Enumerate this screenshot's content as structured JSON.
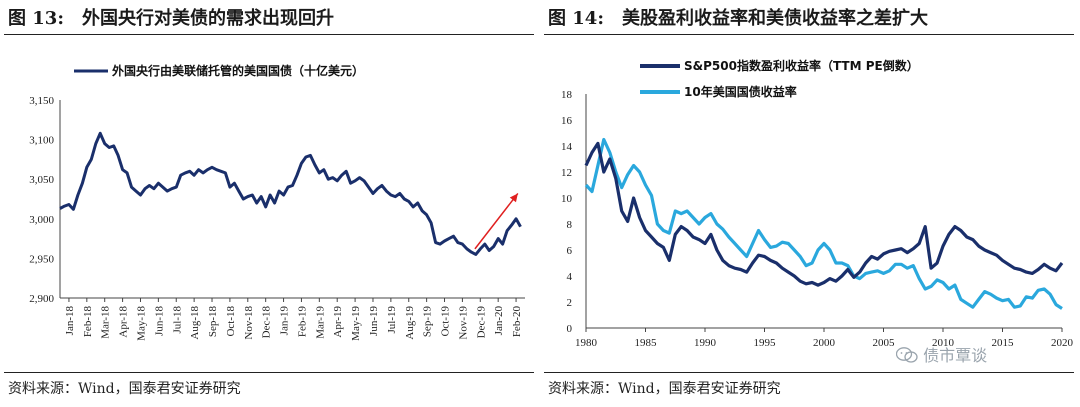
{
  "left": {
    "fig_num": "图 13:",
    "fig_title": "外国央行对美债的需求出现回升",
    "source": "资料来源：Wind，国泰君安证券研究"
  },
  "right": {
    "fig_num": "图 14:",
    "fig_title": "美股盈利收益率和美债收益率之差扩大",
    "source": "资料来源：Wind，国泰君安证券研究",
    "watermark": "债市覃谈"
  },
  "chart_data": [
    {
      "type": "line",
      "title": "",
      "ylim": [
        2900,
        3150
      ],
      "yticks": [
        2900,
        2950,
        3000,
        3050,
        3100,
        3150
      ],
      "ytick_labels": [
        "2,900",
        "2,950",
        "3,000",
        "3,050",
        "3,100",
        "3,150"
      ],
      "xtick_labels": [
        "Jan-18",
        "Feb-18",
        "Mar-18",
        "Apr-18",
        "May-18",
        "Jun-18",
        "Jul-18",
        "Aug-18",
        "Sep-18",
        "Oct-18",
        "Nov-18",
        "Dec-18",
        "Jan-19",
        "Feb-19",
        "Mar-19",
        "Apr-19",
        "May-19",
        "Jun-19",
        "Jul-19",
        "Aug-19",
        "Sep-19",
        "Oct-19",
        "Nov-19",
        "Dec-19",
        "Jan-20",
        "Feb-20"
      ],
      "x_range": [
        0,
        26
      ],
      "arrow": {
        "from": [
          23.2,
          2962
        ],
        "to": [
          25.6,
          3032
        ]
      },
      "series": [
        {
          "name": "外国央行由美联储托管的美国国债（十亿美元）",
          "color": "#1a2f6b",
          "x": [
            0,
            0.25,
            0.5,
            0.75,
            1,
            1.25,
            1.5,
            1.75,
            2,
            2.25,
            2.5,
            2.75,
            3,
            3.25,
            3.5,
            3.75,
            4,
            4.25,
            4.5,
            4.75,
            5,
            5.25,
            5.5,
            5.75,
            6,
            6.25,
            6.5,
            6.75,
            7,
            7.25,
            7.5,
            7.75,
            8,
            8.25,
            8.5,
            8.75,
            9,
            9.25,
            9.5,
            9.75,
            10,
            10.25,
            10.5,
            10.75,
            11,
            11.25,
            11.5,
            11.75,
            12,
            12.25,
            12.5,
            12.75,
            13,
            13.25,
            13.5,
            13.75,
            14,
            14.25,
            14.5,
            14.75,
            15,
            15.25,
            15.5,
            15.75,
            16,
            16.25,
            16.5,
            16.75,
            17,
            17.25,
            17.5,
            17.75,
            18,
            18.25,
            18.5,
            18.75,
            19,
            19.25,
            19.5,
            19.75,
            20,
            20.25,
            20.5,
            20.75,
            21,
            21.25,
            21.5,
            21.75,
            22,
            22.25,
            22.5,
            22.75,
            23,
            23.25,
            23.5,
            23.75,
            24,
            24.25,
            24.5,
            24.75,
            25,
            25.25,
            25.5,
            25.75
          ],
          "values": [
            3013,
            3016,
            3018,
            3012,
            3030,
            3045,
            3065,
            3075,
            3095,
            3108,
            3095,
            3090,
            3092,
            3080,
            3062,
            3058,
            3040,
            3035,
            3030,
            3038,
            3042,
            3038,
            3045,
            3040,
            3035,
            3038,
            3040,
            3055,
            3058,
            3060,
            3055,
            3062,
            3058,
            3062,
            3065,
            3062,
            3060,
            3058,
            3040,
            3045,
            3035,
            3025,
            3028,
            3030,
            3020,
            3028,
            3015,
            3030,
            3020,
            3035,
            3030,
            3040,
            3042,
            3055,
            3070,
            3078,
            3080,
            3068,
            3058,
            3062,
            3050,
            3052,
            3048,
            3055,
            3060,
            3045,
            3048,
            3052,
            3048,
            3040,
            3032,
            3038,
            3042,
            3035,
            3030,
            3028,
            3032,
            3025,
            3022,
            3015,
            3020,
            3010,
            3005,
            2995,
            2970,
            2968,
            2972,
            2975,
            2978,
            2970,
            2968,
            2962,
            2958,
            2955,
            2962,
            2968,
            2960,
            2965,
            2975,
            2968,
            2985,
            2992,
            3000,
            2990
          ]
        }
      ]
    },
    {
      "type": "line",
      "title": "",
      "ylim": [
        0,
        18
      ],
      "yticks": [
        0,
        2,
        4,
        6,
        8,
        10,
        12,
        14,
        16,
        18
      ],
      "xlim": [
        1980,
        2020
      ],
      "xticks": [
        1980,
        1985,
        1990,
        1995,
        2000,
        2005,
        2010,
        2015,
        2020
      ],
      "series": [
        {
          "name": "S&P500指数盈利收益率（TTM PE倒数）",
          "color": "#1a2f6b",
          "x": [
            1980,
            1980.5,
            1981,
            1981.5,
            1982,
            1982.5,
            1983,
            1983.5,
            1984,
            1984.5,
            1985,
            1985.5,
            1986,
            1986.5,
            1987,
            1987.5,
            1988,
            1988.5,
            1989,
            1989.5,
            1990,
            1990.5,
            1991,
            1991.5,
            1992,
            1992.5,
            1993,
            1993.5,
            1994,
            1994.5,
            1995,
            1995.5,
            1996,
            1996.5,
            1997,
            1997.5,
            1998,
            1998.5,
            1999,
            1999.5,
            2000,
            2000.5,
            2001,
            2001.5,
            2002,
            2002.5,
            2003,
            2003.5,
            2004,
            2004.5,
            2005,
            2005.5,
            2006,
            2006.5,
            2007,
            2007.5,
            2008,
            2008.5,
            2009,
            2009.5,
            2010,
            2010.5,
            2011,
            2011.5,
            2012,
            2012.5,
            2013,
            2013.5,
            2014,
            2014.5,
            2015,
            2015.5,
            2016,
            2016.5,
            2017,
            2017.5,
            2018,
            2018.5,
            2019,
            2019.5,
            2020
          ],
          "values": [
            12.5,
            13.5,
            14.2,
            12.0,
            13.0,
            11.5,
            9.0,
            8.2,
            10.0,
            8.5,
            7.5,
            7.0,
            6.5,
            6.2,
            5.2,
            7.2,
            7.8,
            7.5,
            7.0,
            6.8,
            6.5,
            7.2,
            6.0,
            5.2,
            4.8,
            4.6,
            4.5,
            4.3,
            5.0,
            5.6,
            5.5,
            5.2,
            5.0,
            4.6,
            4.3,
            4.0,
            3.6,
            3.4,
            3.5,
            3.3,
            3.5,
            3.8,
            3.6,
            4.0,
            4.5,
            3.9,
            4.3,
            5.0,
            5.5,
            5.3,
            5.7,
            5.9,
            6.0,
            6.1,
            5.8,
            6.1,
            6.5,
            7.8,
            4.6,
            5.0,
            6.3,
            7.2,
            7.8,
            7.5,
            7.0,
            6.8,
            6.3,
            6.0,
            5.8,
            5.6,
            5.2,
            4.9,
            4.6,
            4.5,
            4.3,
            4.2,
            4.5,
            4.9,
            4.6,
            4.4,
            5.0
          ]
        },
        {
          "name": "10年美国国债收益率",
          "color": "#2aa8dd",
          "x": [
            1980,
            1980.5,
            1981,
            1981.5,
            1982,
            1982.5,
            1983,
            1983.5,
            1984,
            1984.5,
            1985,
            1985.5,
            1986,
            1986.5,
            1987,
            1987.5,
            1988,
            1988.5,
            1989,
            1989.5,
            1990,
            1990.5,
            1991,
            1991.5,
            1992,
            1992.5,
            1993,
            1993.5,
            1994,
            1994.5,
            1995,
            1995.5,
            1996,
            1996.5,
            1997,
            1997.5,
            1998,
            1998.5,
            1999,
            1999.5,
            2000,
            2000.5,
            2001,
            2001.5,
            2002,
            2002.5,
            2003,
            2003.5,
            2004,
            2004.5,
            2005,
            2005.5,
            2006,
            2006.5,
            2007,
            2007.5,
            2008,
            2008.5,
            2009,
            2009.5,
            2010,
            2010.5,
            2011,
            2011.5,
            2012,
            2012.5,
            2013,
            2013.5,
            2014,
            2014.5,
            2015,
            2015.5,
            2016,
            2016.5,
            2017,
            2017.5,
            2018,
            2018.5,
            2019,
            2019.5,
            2020
          ],
          "values": [
            11.0,
            10.5,
            12.5,
            14.5,
            13.5,
            12.0,
            10.8,
            11.8,
            12.5,
            12.0,
            11.0,
            10.2,
            8.0,
            7.5,
            7.3,
            9.0,
            8.8,
            9.0,
            8.5,
            8.0,
            8.5,
            8.8,
            8.0,
            7.6,
            7.0,
            6.5,
            6.0,
            5.5,
            6.5,
            7.5,
            6.8,
            6.2,
            6.3,
            6.6,
            6.5,
            6.0,
            5.5,
            4.8,
            5.0,
            6.0,
            6.5,
            6.0,
            5.0,
            5.0,
            4.8,
            4.0,
            3.8,
            4.2,
            4.3,
            4.4,
            4.2,
            4.4,
            4.9,
            4.9,
            4.6,
            4.8,
            3.8,
            3.0,
            3.2,
            3.7,
            3.5,
            3.0,
            3.3,
            2.2,
            1.9,
            1.6,
            2.2,
            2.8,
            2.6,
            2.3,
            2.1,
            2.2,
            1.6,
            1.7,
            2.4,
            2.3,
            2.9,
            3.0,
            2.6,
            1.8,
            1.5
          ]
        }
      ]
    }
  ]
}
